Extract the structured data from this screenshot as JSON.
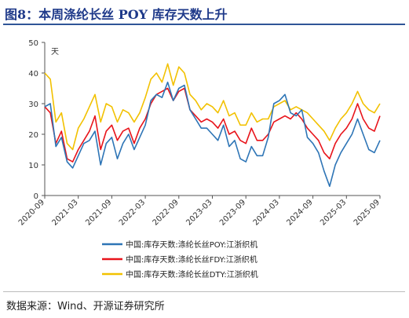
{
  "figure": {
    "title": "图8：本周涤纶长丝 POY 库存天数上升",
    "source": "数据来源：Wind、开源证券研究所"
  },
  "chart_data": {
    "type": "line",
    "ylabel": "天",
    "ylim": [
      0,
      50
    ],
    "yticks": [
      0,
      10,
      20,
      30,
      40,
      50
    ],
    "xlim": [
      "2020-09",
      "2025-09"
    ],
    "xticks": [
      "2020-09",
      "2021-03",
      "2021-09",
      "2022-03",
      "2022-09",
      "2023-03",
      "2023-09",
      "2024-03",
      "2024-09",
      "2025-03",
      "2025-09"
    ],
    "grid": false,
    "legend_position": "bottom",
    "series": [
      {
        "name": "中国:库存天数:涤纶长丝POY:江浙织机",
        "color": "#2e75b6",
        "points": [
          [
            "2020-09",
            29
          ],
          [
            "2020-10",
            30
          ],
          [
            "2020-11",
            16
          ],
          [
            "2020-12",
            19
          ],
          [
            "2021-01",
            11
          ],
          [
            "2021-02",
            9
          ],
          [
            "2021-03",
            13
          ],
          [
            "2021-04",
            17
          ],
          [
            "2021-05",
            18
          ],
          [
            "2021-06",
            21
          ],
          [
            "2021-07",
            10
          ],
          [
            "2021-08",
            17
          ],
          [
            "2021-09",
            19
          ],
          [
            "2021-10",
            12
          ],
          [
            "2021-11",
            17
          ],
          [
            "2021-12",
            20
          ],
          [
            "2022-01",
            15
          ],
          [
            "2022-02",
            19
          ],
          [
            "2022-03",
            23
          ],
          [
            "2022-04",
            31
          ],
          [
            "2022-05",
            33
          ],
          [
            "2022-06",
            32
          ],
          [
            "2022-07",
            37
          ],
          [
            "2022-08",
            31
          ],
          [
            "2022-09",
            35
          ],
          [
            "2022-10",
            36
          ],
          [
            "2022-11",
            28
          ],
          [
            "2022-12",
            25
          ],
          [
            "2023-01",
            22
          ],
          [
            "2023-02",
            22
          ],
          [
            "2023-03",
            20
          ],
          [
            "2023-04",
            18
          ],
          [
            "2023-05",
            23
          ],
          [
            "2023-06",
            16
          ],
          [
            "2023-07",
            18
          ],
          [
            "2023-08",
            12
          ],
          [
            "2023-09",
            11
          ],
          [
            "2023-10",
            16
          ],
          [
            "2023-11",
            13
          ],
          [
            "2023-12",
            13
          ],
          [
            "2024-01",
            19
          ],
          [
            "2024-02",
            30
          ],
          [
            "2024-03",
            31
          ],
          [
            "2024-04",
            33
          ],
          [
            "2024-05",
            27
          ],
          [
            "2024-06",
            26
          ],
          [
            "2024-07",
            28
          ],
          [
            "2024-08",
            19
          ],
          [
            "2024-09",
            17
          ],
          [
            "2024-10",
            14
          ],
          [
            "2024-11",
            8
          ],
          [
            "2024-12",
            3
          ],
          [
            "2025-01",
            10
          ],
          [
            "2025-02",
            14
          ],
          [
            "2025-03",
            17
          ],
          [
            "2025-04",
            20
          ],
          [
            "2025-05",
            25
          ],
          [
            "2025-06",
            20
          ],
          [
            "2025-07",
            15
          ],
          [
            "2025-08",
            14
          ],
          [
            "2025-09",
            18
          ]
        ]
      },
      {
        "name": "中国:库存天数:涤纶长丝FDY:江浙织机",
        "color": "#e8141b",
        "points": [
          [
            "2020-09",
            29
          ],
          [
            "2020-10",
            27
          ],
          [
            "2020-11",
            17
          ],
          [
            "2020-12",
            21
          ],
          [
            "2021-01",
            12
          ],
          [
            "2021-02",
            11
          ],
          [
            "2021-03",
            15
          ],
          [
            "2021-04",
            18
          ],
          [
            "2021-05",
            21
          ],
          [
            "2021-06",
            26
          ],
          [
            "2021-07",
            15
          ],
          [
            "2021-08",
            21
          ],
          [
            "2021-09",
            23
          ],
          [
            "2021-10",
            18
          ],
          [
            "2021-11",
            21
          ],
          [
            "2021-12",
            22
          ],
          [
            "2022-01",
            17
          ],
          [
            "2022-02",
            22
          ],
          [
            "2022-03",
            25
          ],
          [
            "2022-04",
            30
          ],
          [
            "2022-05",
            33
          ],
          [
            "2022-06",
            34
          ],
          [
            "2022-07",
            35
          ],
          [
            "2022-08",
            31
          ],
          [
            "2022-09",
            34
          ],
          [
            "2022-10",
            35
          ],
          [
            "2022-11",
            28
          ],
          [
            "2022-12",
            26
          ],
          [
            "2023-01",
            24
          ],
          [
            "2023-02",
            25
          ],
          [
            "2023-03",
            24
          ],
          [
            "2023-04",
            22
          ],
          [
            "2023-05",
            25
          ],
          [
            "2023-06",
            20
          ],
          [
            "2023-07",
            21
          ],
          [
            "2023-08",
            18
          ],
          [
            "2023-09",
            17
          ],
          [
            "2023-10",
            22
          ],
          [
            "2023-11",
            18
          ],
          [
            "2023-12",
            18
          ],
          [
            "2024-01",
            20
          ],
          [
            "2024-02",
            24
          ],
          [
            "2024-03",
            25
          ],
          [
            "2024-04",
            26
          ],
          [
            "2024-05",
            25
          ],
          [
            "2024-06",
            27
          ],
          [
            "2024-07",
            25
          ],
          [
            "2024-08",
            22
          ],
          [
            "2024-09",
            20
          ],
          [
            "2024-10",
            18
          ],
          [
            "2024-11",
            14
          ],
          [
            "2024-12",
            12
          ],
          [
            "2025-01",
            17
          ],
          [
            "2025-02",
            20
          ],
          [
            "2025-03",
            22
          ],
          [
            "2025-04",
            25
          ],
          [
            "2025-05",
            30
          ],
          [
            "2025-06",
            25
          ],
          [
            "2025-07",
            22
          ],
          [
            "2025-08",
            21
          ],
          [
            "2025-09",
            26
          ]
        ]
      },
      {
        "name": "中国:库存天数:涤纶长丝DTY:江浙织机",
        "color": "#f2c100",
        "points": [
          [
            "2020-09",
            40
          ],
          [
            "2020-10",
            38
          ],
          [
            "2020-11",
            24
          ],
          [
            "2020-12",
            27
          ],
          [
            "2021-01",
            17
          ],
          [
            "2021-02",
            15
          ],
          [
            "2021-03",
            22
          ],
          [
            "2021-04",
            25
          ],
          [
            "2021-05",
            29
          ],
          [
            "2021-06",
            33
          ],
          [
            "2021-07",
            24
          ],
          [
            "2021-08",
            30
          ],
          [
            "2021-09",
            29
          ],
          [
            "2021-10",
            24
          ],
          [
            "2021-11",
            28
          ],
          [
            "2021-12",
            27
          ],
          [
            "2022-01",
            24
          ],
          [
            "2022-02",
            27
          ],
          [
            "2022-03",
            32
          ],
          [
            "2022-04",
            38
          ],
          [
            "2022-05",
            40
          ],
          [
            "2022-06",
            37
          ],
          [
            "2022-07",
            43
          ],
          [
            "2022-08",
            36
          ],
          [
            "2022-09",
            42
          ],
          [
            "2022-10",
            40
          ],
          [
            "2022-11",
            33
          ],
          [
            "2022-12",
            31
          ],
          [
            "2023-01",
            28
          ],
          [
            "2023-02",
            30
          ],
          [
            "2023-03",
            29
          ],
          [
            "2023-04",
            27
          ],
          [
            "2023-05",
            31
          ],
          [
            "2023-06",
            26
          ],
          [
            "2023-07",
            27
          ],
          [
            "2023-08",
            23
          ],
          [
            "2023-09",
            23
          ],
          [
            "2023-10",
            27
          ],
          [
            "2023-11",
            24
          ],
          [
            "2023-12",
            25
          ],
          [
            "2024-01",
            25
          ],
          [
            "2024-02",
            29
          ],
          [
            "2024-03",
            30
          ],
          [
            "2024-04",
            31
          ],
          [
            "2024-05",
            28
          ],
          [
            "2024-06",
            29
          ],
          [
            "2024-07",
            28
          ],
          [
            "2024-08",
            27
          ],
          [
            "2024-09",
            25
          ],
          [
            "2024-10",
            23
          ],
          [
            "2024-11",
            21
          ],
          [
            "2024-12",
            18
          ],
          [
            "2025-01",
            22
          ],
          [
            "2025-02",
            25
          ],
          [
            "2025-03",
            27
          ],
          [
            "2025-04",
            30
          ],
          [
            "2025-05",
            34
          ],
          [
            "2025-06",
            30
          ],
          [
            "2025-07",
            28
          ],
          [
            "2025-08",
            27
          ],
          [
            "2025-09",
            30
          ]
        ]
      }
    ]
  }
}
